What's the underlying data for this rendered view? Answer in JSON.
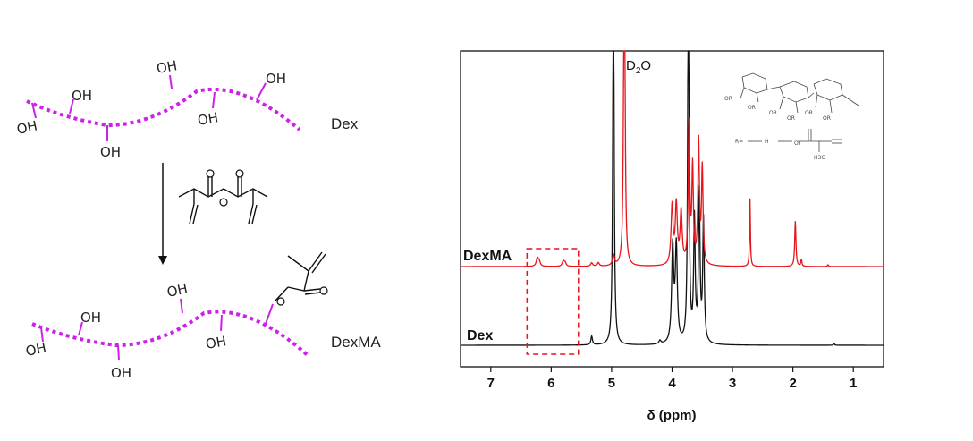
{
  "scheme": {
    "top_label": "Dex",
    "bottom_label": "DexMA",
    "hydroxyl": "OH"
  },
  "chart_data": {
    "type": "line",
    "xlabel": "δ (ppm)",
    "xlim": [
      7.5,
      0.5
    ],
    "x_reversed": true,
    "ticks": [
      7,
      6,
      5,
      4,
      3,
      2,
      1
    ],
    "grid": false,
    "series": [
      {
        "name": "DexMA",
        "color": "#e8141a",
        "baseline": 0.0,
        "peaks": [
          {
            "x": 6.23,
            "height": 0.045,
            "width": 0.02
          },
          {
            "x": 6.2,
            "height": 0.03,
            "width": 0.02
          },
          {
            "x": 5.8,
            "height": 0.03,
            "width": 0.02
          },
          {
            "x": 5.77,
            "height": 0.02,
            "width": 0.02
          },
          {
            "x": 5.33,
            "height": 0.02,
            "width": 0.02
          },
          {
            "x": 5.22,
            "height": 0.02,
            "width": 0.02
          },
          {
            "x": 4.97,
            "height": 0.06,
            "width": 0.02
          },
          {
            "x": 4.79,
            "height": 2.5,
            "width": 0.012
          },
          {
            "x": 4.0,
            "height": 0.34,
            "width": 0.02
          },
          {
            "x": 3.93,
            "height": 0.34,
            "width": 0.02
          },
          {
            "x": 3.85,
            "height": 0.3,
            "width": 0.02
          },
          {
            "x": 3.72,
            "height": 0.8,
            "width": 0.015
          },
          {
            "x": 3.66,
            "height": 0.55,
            "width": 0.015
          },
          {
            "x": 3.56,
            "height": 0.7,
            "width": 0.015
          },
          {
            "x": 3.5,
            "height": 0.55,
            "width": 0.015
          },
          {
            "x": 2.71,
            "height": 0.39,
            "width": 0.008
          },
          {
            "x": 1.96,
            "height": 0.26,
            "width": 0.012
          },
          {
            "x": 1.86,
            "height": 0.04,
            "width": 0.01
          },
          {
            "x": 1.42,
            "height": 0.01,
            "width": 0.01
          }
        ]
      },
      {
        "name": "Dex",
        "color": "#111111",
        "baseline": 0.0,
        "peaks": [
          {
            "x": 5.33,
            "height": 0.05,
            "width": 0.015
          },
          {
            "x": 4.97,
            "height": 2.5,
            "width": 0.012
          },
          {
            "x": 4.2,
            "height": 0.02,
            "width": 0.02
          },
          {
            "x": 3.99,
            "height": 0.55,
            "width": 0.02
          },
          {
            "x": 3.93,
            "height": 0.55,
            "width": 0.02
          },
          {
            "x": 3.73,
            "height": 2.5,
            "width": 0.012
          },
          {
            "x": 3.63,
            "height": 0.7,
            "width": 0.015
          },
          {
            "x": 3.55,
            "height": 0.85,
            "width": 0.015
          },
          {
            "x": 3.48,
            "height": 0.7,
            "width": 0.015
          },
          {
            "x": 1.32,
            "height": 0.01,
            "width": 0.01
          }
        ]
      }
    ],
    "annotations": {
      "solvent": "D",
      "solvent_sub": "2",
      "solvent_end": "O",
      "region_box": {
        "x_from": 6.4,
        "x_to": 5.55
      },
      "structure_r_label": "R=",
      "structure_h": "H",
      "structure_or": "Or",
      "structure_ch3": "H3C",
      "structure_or_label": "OR"
    }
  }
}
